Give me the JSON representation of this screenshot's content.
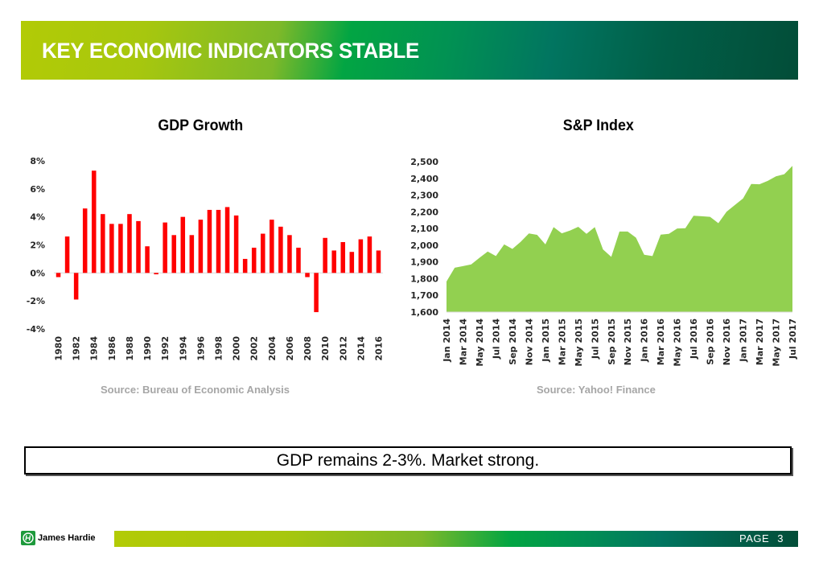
{
  "header": {
    "title": "KEY ECONOMIC INDICATORS STABLE"
  },
  "summary": {
    "text": "GDP remains 2-3%. Market strong."
  },
  "footer": {
    "brand": "James Hardie",
    "page_label": "PAGE   3"
  },
  "colors": {
    "gdp_bar": "#ff0000",
    "sp_area": "#92d050",
    "axis_text": "#262626",
    "source_text": "#a6a6a6"
  },
  "chart_data": [
    {
      "type": "bar",
      "title": "GDP Growth",
      "source": "Source: Bureau of Economic Analysis",
      "xlabel": "",
      "ylabel": "",
      "ylim": [
        -4,
        8
      ],
      "yticks": [
        -4,
        -2,
        0,
        2,
        4,
        6,
        8
      ],
      "ytick_labels": [
        "-4%",
        "-2%",
        "0%",
        "2%",
        "4%",
        "6%",
        "8%"
      ],
      "grid": false,
      "categories": [
        "1980",
        "1981",
        "1982",
        "1983",
        "1984",
        "1985",
        "1986",
        "1987",
        "1988",
        "1989",
        "1990",
        "1991",
        "1992",
        "1993",
        "1994",
        "1995",
        "1996",
        "1997",
        "1998",
        "1999",
        "2000",
        "2001",
        "2002",
        "2003",
        "2004",
        "2005",
        "2006",
        "2007",
        "2008",
        "2009",
        "2010",
        "2011",
        "2012",
        "2013",
        "2014",
        "2015",
        "2016"
      ],
      "xtick_labels": [
        "1980",
        "1982",
        "1984",
        "1986",
        "1988",
        "1990",
        "1992",
        "1994",
        "1996",
        "1998",
        "2000",
        "2002",
        "2004",
        "2006",
        "2008",
        "2010",
        "2012",
        "2014",
        "2016"
      ],
      "values": [
        -0.3,
        2.6,
        -1.9,
        4.6,
        7.3,
        4.2,
        3.5,
        3.5,
        4.2,
        3.7,
        1.9,
        -0.1,
        3.6,
        2.7,
        4.0,
        2.7,
        3.8,
        4.5,
        4.5,
        4.7,
        4.1,
        1.0,
        1.8,
        2.8,
        3.8,
        3.3,
        2.7,
        1.8,
        -0.3,
        -2.8,
        2.5,
        1.6,
        2.2,
        1.5,
        2.4,
        2.6,
        1.6
      ],
      "unit": "%"
    },
    {
      "type": "area",
      "title": "S&P Index",
      "source": "Source: Yahoo! Finance",
      "xlabel": "",
      "ylabel": "",
      "ylim": [
        1600,
        2500
      ],
      "yticks": [
        1600,
        1700,
        1800,
        1900,
        2000,
        2100,
        2200,
        2300,
        2400,
        2500
      ],
      "ytick_labels": [
        "1,600",
        "1,700",
        "1,800",
        "1,900",
        "2,000",
        "2,100",
        "2,200",
        "2,300",
        "2,400",
        "2,500"
      ],
      "grid": false,
      "x": [
        "Jan 2014",
        "Feb 2014",
        "Mar 2014",
        "Apr 2014",
        "May 2014",
        "Jun 2014",
        "Jul 2014",
        "Aug 2014",
        "Sep 2014",
        "Oct 2014",
        "Nov 2014",
        "Dec 2014",
        "Jan 2015",
        "Feb 2015",
        "Mar 2015",
        "Apr 2015",
        "May 2015",
        "Jun 2015",
        "Jul 2015",
        "Aug 2015",
        "Sep 2015",
        "Oct 2015",
        "Nov 2015",
        "Dec 2015",
        "Jan 2016",
        "Feb 2016",
        "Mar 2016",
        "Apr 2016",
        "May 2016",
        "Jun 2016",
        "Jul 2016",
        "Aug 2016",
        "Sep 2016",
        "Oct 2016",
        "Nov 2016",
        "Dec 2016",
        "Jan 2017",
        "Feb 2017",
        "Mar 2017",
        "Apr 2017",
        "May 2017",
        "Jun 2017",
        "Jul 2017"
      ],
      "xtick_labels": [
        "Jan 2014",
        "Mar 2014",
        "May 2014",
        "Jul 2014",
        "Sep 2014",
        "Nov 2014",
        "Jan 2015",
        "Mar 2015",
        "May 2015",
        "Jul 2015",
        "Sep 2015",
        "Nov 2015",
        "Jan 2016",
        "Mar 2016",
        "May 2016",
        "Jul 2016",
        "Sep 2016",
        "Nov 2016",
        "Jan 2017",
        "Mar 2017",
        "May 2017",
        "Jul 2017"
      ],
      "values": [
        1783,
        1865,
        1875,
        1885,
        1925,
        1962,
        1935,
        2005,
        1978,
        2020,
        2070,
        2062,
        2005,
        2108,
        2071,
        2088,
        2110,
        2068,
        2108,
        1975,
        1930,
        2082,
        2082,
        2045,
        1943,
        1935,
        2063,
        2068,
        2100,
        2102,
        2176,
        2173,
        2170,
        2132,
        2200,
        2240,
        2280,
        2366,
        2365,
        2385,
        2412,
        2425,
        2475
      ]
    }
  ]
}
